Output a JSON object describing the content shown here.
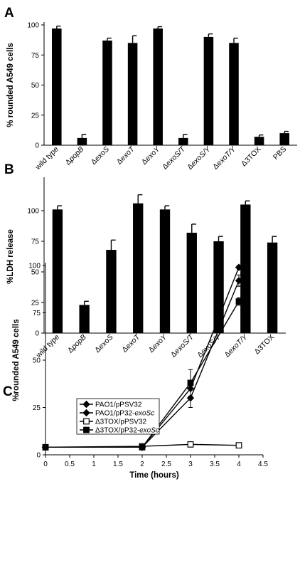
{
  "chart_data": [
    {
      "id": "A",
      "type": "bar",
      "panel_label": "A",
      "ylabel": "% rounded A549 cells",
      "xlabel": "",
      "ylim": [
        0,
        100
      ],
      "yticks": [
        0,
        25,
        50,
        75,
        100
      ],
      "categories": [
        "wild type",
        "ΔpopB",
        "ΔexoS",
        "ΔexoT",
        "ΔexoY",
        "ΔexoS/T",
        "ΔexoS/Y",
        "ΔexoT/Y",
        "Δ3TOX",
        "PBS"
      ],
      "category_labels": [
        [
          {
            "t": "wild type",
            "i": false
          }
        ],
        [
          {
            "t": "Δ",
            "i": false
          },
          {
            "t": "popB",
            "i": true
          }
        ],
        [
          {
            "t": "Δ",
            "i": false
          },
          {
            "t": "exoS",
            "i": true
          }
        ],
        [
          {
            "t": "Δ",
            "i": false
          },
          {
            "t": "exoT",
            "i": true
          }
        ],
        [
          {
            "t": "Δ",
            "i": false
          },
          {
            "t": "exoY",
            "i": true
          }
        ],
        [
          {
            "t": "Δ",
            "i": false
          },
          {
            "t": "exoS/T",
            "i": true
          }
        ],
        [
          {
            "t": "Δ",
            "i": false
          },
          {
            "t": "exoS/Y",
            "i": true
          }
        ],
        [
          {
            "t": "Δ",
            "i": false
          },
          {
            "t": "exoT/Y",
            "i": true
          }
        ],
        [
          {
            "t": "Δ3TOX",
            "i": false
          }
        ],
        [
          {
            "t": "PBS",
            "i": false
          }
        ]
      ],
      "values": [
        97,
        6,
        87,
        85,
        97,
        6,
        90,
        85,
        7,
        10
      ],
      "errors": [
        2,
        3,
        2,
        6,
        1.5,
        3,
        2.5,
        4,
        1.5,
        1.5
      ],
      "bar_color": "#000000"
    },
    {
      "id": "B",
      "type": "bar",
      "panel_label": "B",
      "ylabel": "%LDH release",
      "xlabel": "",
      "ylim": [
        0,
        125
      ],
      "yticks": [
        0,
        25,
        50,
        75,
        100
      ],
      "categories": [
        "wild type",
        "ΔpopB",
        "ΔexoS",
        "ΔexoT",
        "ΔexoY",
        "ΔexoS/T",
        "ΔexoS/Y",
        "ΔexoT/Y",
        "Δ3TOX"
      ],
      "category_labels": [
        [
          {
            "t": "wild type",
            "i": false
          }
        ],
        [
          {
            "t": "Δ",
            "i": false
          },
          {
            "t": "popB",
            "i": true
          }
        ],
        [
          {
            "t": "Δ",
            "i": false
          },
          {
            "t": "exoS",
            "i": true
          }
        ],
        [
          {
            "t": "Δ",
            "i": false
          },
          {
            "t": "exoT",
            "i": true
          }
        ],
        [
          {
            "t": "Δ",
            "i": false
          },
          {
            "t": "exoY",
            "i": true
          }
        ],
        [
          {
            "t": "Δ",
            "i": false
          },
          {
            "t": "exoS/T",
            "i": true
          }
        ],
        [
          {
            "t": "Δ",
            "i": false
          },
          {
            "t": "exoS/Y",
            "i": true
          }
        ],
        [
          {
            "t": "Δ",
            "i": false
          },
          {
            "t": "exoT/Y",
            "i": true
          }
        ],
        [
          {
            "t": "Δ3TOX",
            "i": false
          }
        ]
      ],
      "values": [
        101,
        23,
        68,
        106,
        101,
        82,
        75,
        105,
        74
      ],
      "errors": [
        3,
        3,
        8,
        7,
        3,
        7,
        4,
        3,
        5
      ],
      "bar_color": "#000000"
    },
    {
      "id": "C",
      "type": "line",
      "panel_label": "C",
      "ylabel": "%rounded A549 cells",
      "xlabel": "Time (hours)",
      "xlim": [
        0,
        4.5
      ],
      "ylim": [
        0,
        100
      ],
      "xticks": [
        "0",
        "0.5",
        "1",
        "1.5",
        "2",
        "2.5",
        "3",
        "3.5",
        "4",
        "4.5"
      ],
      "yticks": [
        0,
        25,
        50,
        75,
        100
      ],
      "x": [
        0,
        2,
        3,
        4
      ],
      "legend_position": "top-left",
      "series": [
        {
          "name": "PAO1/pPSV32",
          "name_parts": [
            {
              "t": "PAO1/pPSV32",
              "i": false
            }
          ],
          "values": [
            4,
            4,
            35,
            99
          ],
          "errors": [
            0,
            0,
            4,
            1
          ],
          "marker": "diamond",
          "filled": true
        },
        {
          "name": "PAO1/pP32-exoSc",
          "name_parts": [
            {
              "t": "PAO1/pP32-",
              "i": false
            },
            {
              "t": "exoSc",
              "i": true
            }
          ],
          "values": [
            4,
            4,
            30,
            92
          ],
          "errors": [
            0,
            0,
            5,
            3
          ],
          "marker": "diamond",
          "filled": true
        },
        {
          "name": "Δ3TOX/pPSV32",
          "name_parts": [
            {
              "t": "Δ3TOX/pPSV32",
              "i": false
            }
          ],
          "values": [
            4,
            4.5,
            5.5,
            5
          ],
          "errors": [
            0,
            0.5,
            0.5,
            0.5
          ],
          "marker": "square",
          "filled": false
        },
        {
          "name": "Δ3TOX/pP32-exoSc",
          "name_parts": [
            {
              "t": "Δ3TOX/pP32-",
              "i": false
            },
            {
              "t": "exoSc",
              "i": true
            }
          ],
          "values": [
            4,
            4,
            38,
            81
          ],
          "errors": [
            0,
            0.5,
            7,
            2
          ],
          "marker": "square",
          "filled": true
        }
      ]
    }
  ]
}
